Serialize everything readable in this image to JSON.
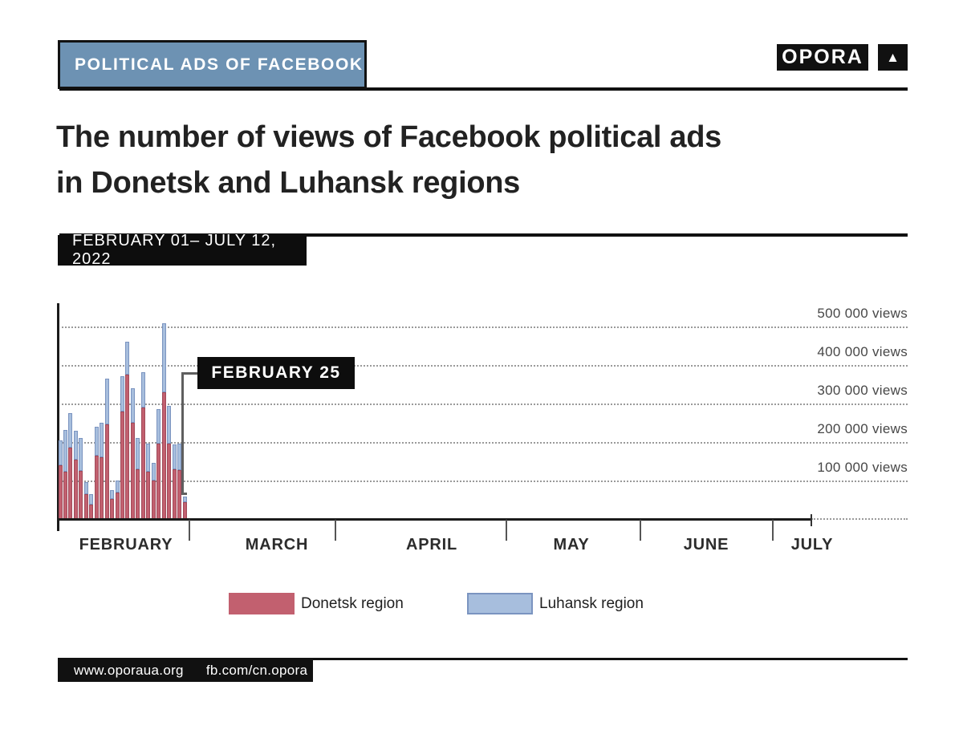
{
  "header": {
    "badge": "POLITICAL ADS OF FACEBOOK",
    "logo_text": "OPORA",
    "logo_mark": "▲"
  },
  "title": {
    "line1": "The number of views of Facebook political ads",
    "line2": "in Donetsk and Luhansk regions"
  },
  "period": "FEBRUARY 01– JULY 12, 2022",
  "annotation": {
    "label": "FEBRUARY 25"
  },
  "chart_data": {
    "type": "bar",
    "stacked": true,
    "title": "The number of views of Facebook political ads in Donetsk and Luhansk regions",
    "period": "FEBRUARY 01– JULY 12, 2022",
    "x_unit": "day",
    "categories": [
      "Feb 01",
      "Feb 02",
      "Feb 03",
      "Feb 04",
      "Feb 05",
      "Feb 06",
      "Feb 07",
      "Feb 08",
      "Feb 09",
      "Feb 10",
      "Feb 11",
      "Feb 12",
      "Feb 13",
      "Feb 14",
      "Feb 15",
      "Feb 16",
      "Feb 17",
      "Feb 18",
      "Feb 19",
      "Feb 20",
      "Feb 21",
      "Feb 22",
      "Feb 23",
      "Feb 24",
      "Feb 25"
    ],
    "series": [
      {
        "name": "Donetsk region",
        "color": "#c2606f",
        "values": [
          140000,
          122000,
          185000,
          155000,
          125000,
          65000,
          38000,
          165000,
          160000,
          245000,
          52000,
          68000,
          280000,
          375000,
          250000,
          130000,
          290000,
          122000,
          99000,
          195000,
          330000,
          196000,
          129000,
          127000,
          43000
        ]
      },
      {
        "name": "Luhansk region",
        "color": "#a7bedd",
        "border_color": "#7b94c0",
        "values": [
          65000,
          110000,
          90000,
          75000,
          85000,
          30000,
          27000,
          75000,
          90000,
          120000,
          23000,
          31000,
          90000,
          85000,
          90000,
          80000,
          92000,
          74000,
          47000,
          90000,
          178000,
          98000,
          65000,
          68000,
          15000
        ]
      }
    ],
    "y_axis": {
      "unit": "views",
      "ylim": [
        0,
        520000
      ],
      "ticks": [
        {
          "value": 100000,
          "label": "100 000 views"
        },
        {
          "value": 200000,
          "label": "200 000 views"
        },
        {
          "value": 300000,
          "label": "300 000 views"
        },
        {
          "value": 400000,
          "label": "400 000 views"
        },
        {
          "value": 500000,
          "label": "500 000 views"
        }
      ]
    },
    "x_axis_months": [
      "FEBRUARY",
      "MARCH",
      "APRIL",
      "MAY",
      "JUNE",
      "JULY"
    ],
    "gridlines": "dotted",
    "legend_position": "bottom",
    "annotation": "FEBRUARY 25"
  },
  "legend": {
    "donetsk_label": "Donetsk region",
    "luhansk_label": "Luhansk region"
  },
  "footer": {
    "website": "www.oporaua.org",
    "facebook": "fb.com/cn.opora"
  },
  "colors": {
    "accent_blue": "#6d92b3",
    "black": "#111111",
    "gridline": "#9a9a9a"
  }
}
